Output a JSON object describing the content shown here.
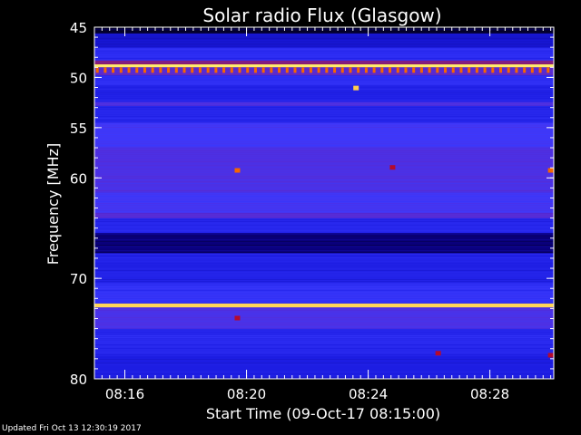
{
  "chart_data": {
    "type": "heatmap",
    "title": "Solar radio Flux (Glasgow)",
    "xlabel": "Start Time (09-Oct-17 08:15:00)",
    "ylabel": "Frequency [MHz]",
    "xlim_minutes": [
      15.0,
      30.1
    ],
    "ylim": [
      45,
      80
    ],
    "y_inverted": true,
    "x_ticks": [
      "08:16",
      "08:20",
      "08:24",
      "08:28"
    ],
    "x_tick_minutes": [
      16,
      20,
      24,
      28
    ],
    "y_ticks": [
      45,
      50,
      55,
      60,
      70,
      80
    ],
    "colormap": [
      "#000000",
      "#0a0080",
      "#1a1ae0",
      "#3a3aff",
      "#5a2ad0",
      "#8a1a70",
      "#d00000",
      "#ff8000",
      "#ffff80"
    ],
    "bands_mhz": [
      {
        "from": 45.0,
        "to": 45.6,
        "level": 0.05
      },
      {
        "from": 45.6,
        "to": 47.0,
        "level": 0.22
      },
      {
        "from": 47.0,
        "to": 48.3,
        "level": 0.32
      },
      {
        "from": 48.3,
        "to": 48.7,
        "level": 0.6
      },
      {
        "from": 48.7,
        "to": 49.0,
        "level": 0.98
      },
      {
        "from": 49.0,
        "to": 49.8,
        "level": 0.5
      },
      {
        "from": 49.8,
        "to": 50.8,
        "level": 0.32
      },
      {
        "from": 50.8,
        "to": 52.4,
        "level": 0.28
      },
      {
        "from": 52.4,
        "to": 52.8,
        "level": 0.45
      },
      {
        "from": 52.8,
        "to": 54.5,
        "level": 0.3
      },
      {
        "from": 54.5,
        "to": 57.0,
        "level": 0.4
      },
      {
        "from": 57.0,
        "to": 61.5,
        "level": 0.45
      },
      {
        "from": 61.5,
        "to": 63.5,
        "level": 0.4
      },
      {
        "from": 63.5,
        "to": 64.0,
        "level": 0.5
      },
      {
        "from": 64.0,
        "to": 65.5,
        "level": 0.3
      },
      {
        "from": 65.5,
        "to": 67.5,
        "level": 0.12
      },
      {
        "from": 67.5,
        "to": 70.5,
        "level": 0.28
      },
      {
        "from": 70.5,
        "to": 72.5,
        "level": 0.34
      },
      {
        "from": 72.5,
        "to": 72.9,
        "level": 0.96
      },
      {
        "from": 72.9,
        "to": 75.0,
        "level": 0.44
      },
      {
        "from": 75.0,
        "to": 77.5,
        "level": 0.3
      },
      {
        "from": 77.5,
        "to": 80.0,
        "level": 0.26
      }
    ],
    "spot_events": [
      {
        "minute": 19.7,
        "mhz": 59.3,
        "level": 0.85
      },
      {
        "minute": 23.6,
        "mhz": 51.1,
        "level": 0.95
      },
      {
        "minute": 24.8,
        "mhz": 59.0,
        "level": 0.7
      },
      {
        "minute": 30.0,
        "mhz": 59.3,
        "level": 0.85
      },
      {
        "minute": 19.7,
        "mhz": 74.0,
        "level": 0.7
      },
      {
        "minute": 26.3,
        "mhz": 77.5,
        "level": 0.7
      },
      {
        "minute": 30.0,
        "mhz": 77.7,
        "level": 0.7
      }
    ]
  },
  "footer": {
    "updated_text": "Updated Fri Oct 13 12:30:19 2017"
  }
}
